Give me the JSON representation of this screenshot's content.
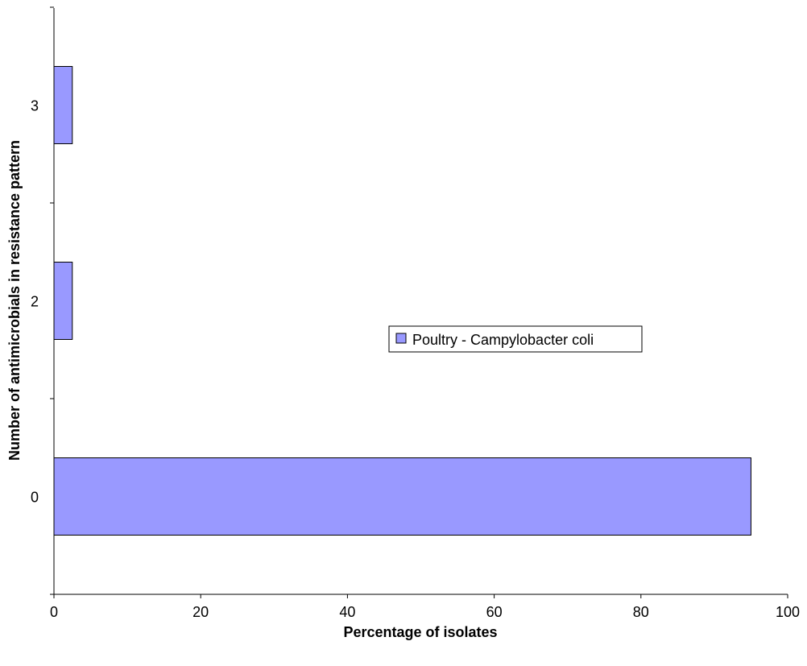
{
  "chart_data": {
    "type": "bar",
    "orientation": "horizontal",
    "categories": [
      "0",
      "2",
      "3"
    ],
    "series": [
      {
        "name": "Poultry - Campylobacter coli",
        "values": [
          95,
          2.5,
          2.5
        ],
        "color": "#9999ff"
      }
    ],
    "xlabel": "Percentage of isolates",
    "ylabel": "Number of antimicrobials in resistance pattern",
    "xlim": [
      0,
      100
    ],
    "xticks": [
      "0",
      "20",
      "40",
      "60",
      "80",
      "100"
    ],
    "grid": false,
    "legend_position": "center-right"
  }
}
